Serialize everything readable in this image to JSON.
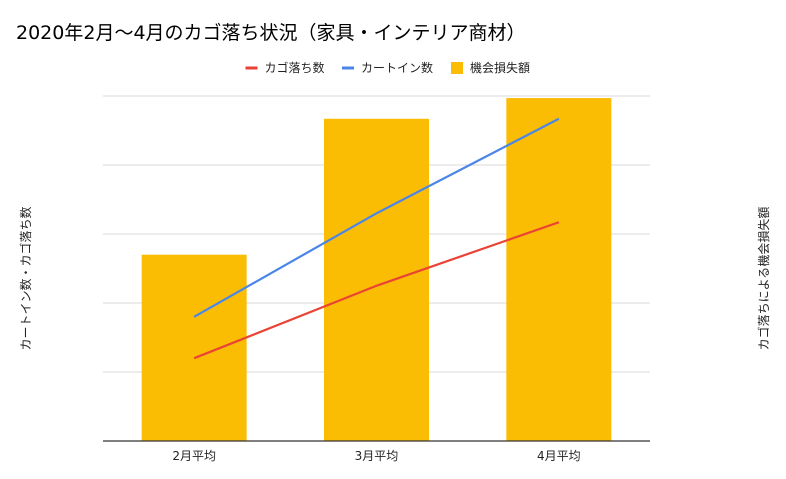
{
  "chart_data": {
    "type": "bar",
    "title": "2020年2月～4月のカゴ落ち状況（家具・インテリア商材）",
    "xlabel": "",
    "ylabel_left": "カートイン数・カゴ落ち数",
    "ylabel_right": "カゴ落ちによる機会損失額",
    "categories": [
      "2月平均",
      "3月平均",
      "4月平均"
    ],
    "y_left_range": [
      0,
      5
    ],
    "y_right_range": [
      0,
      5
    ],
    "grid": true,
    "legend_position": "top",
    "series": [
      {
        "name": "カゴ落ち数",
        "type": "line",
        "axis": "left",
        "color": "#ea4335",
        "values": [
          1.2,
          2.25,
          3.17
        ]
      },
      {
        "name": "カートイン数",
        "type": "line",
        "axis": "left",
        "color": "#4a86e8",
        "values": [
          1.8,
          3.3,
          4.67
        ]
      },
      {
        "name": "機会損失額",
        "type": "bar",
        "axis": "right",
        "color": "#fbbc04",
        "values": [
          2.7,
          4.67,
          4.97
        ]
      }
    ]
  }
}
